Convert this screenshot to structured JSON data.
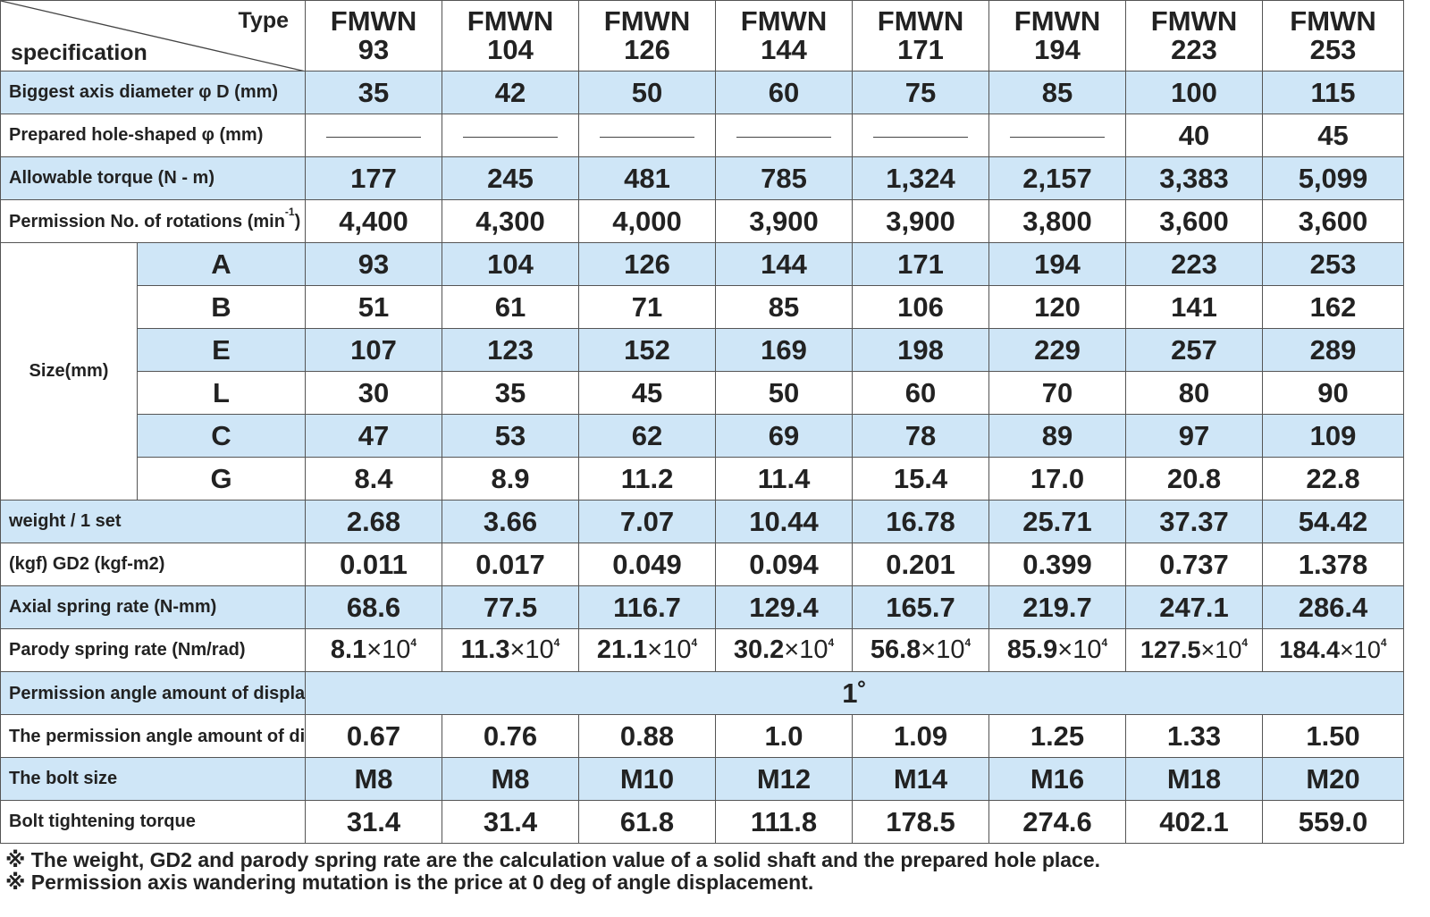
{
  "header": {
    "type_label": "Type",
    "spec_label": "specification",
    "models": [
      {
        "series": "FMWN",
        "num": "93"
      },
      {
        "series": "FMWN",
        "num": "104"
      },
      {
        "series": "FMWN",
        "num": "126"
      },
      {
        "series": "FMWN",
        "num": "144"
      },
      {
        "series": "FMWN",
        "num": "171"
      },
      {
        "series": "FMWN",
        "num": "194"
      },
      {
        "series": "FMWN",
        "num": "223"
      },
      {
        "series": "FMWN",
        "num": "253"
      }
    ]
  },
  "rows": {
    "biggest_axis": {
      "label": "Biggest axis diameter φ D (mm)",
      "values": [
        "35",
        "42",
        "50",
        "60",
        "75",
        "85",
        "100",
        "115"
      ]
    },
    "prepared_hole": {
      "label": "Prepared hole-shaped φ (mm)",
      "values": [
        "",
        "",
        "",
        "",
        "",
        "",
        "40",
        "45"
      ]
    },
    "torque": {
      "label": "Allowable torque (N - m)",
      "values": [
        "177",
        "245",
        "481",
        "785",
        "1,324",
        "2,157",
        "3,383",
        "5,099"
      ]
    },
    "rotations": {
      "label": "Permission No. of rotations (min",
      "label_sup": "-1",
      "label_end": ")",
      "values": [
        "4,400",
        "4,300",
        "4,000",
        "3,900",
        "3,900",
        "3,800",
        "3,600",
        "3,600"
      ]
    },
    "size": {
      "label": "Size(mm)",
      "sub": [
        {
          "key": "A",
          "values": [
            "93",
            "104",
            "126",
            "144",
            "171",
            "194",
            "223",
            "253"
          ]
        },
        {
          "key": "B",
          "values": [
            "51",
            "61",
            "71",
            "85",
            "106",
            "120",
            "141",
            "162"
          ]
        },
        {
          "key": "E",
          "values": [
            "107",
            "123",
            "152",
            "169",
            "198",
            "229",
            "257",
            "289"
          ]
        },
        {
          "key": "L",
          "values": [
            "30",
            "35",
            "45",
            "50",
            "60",
            "70",
            "80",
            "90"
          ]
        },
        {
          "key": "C",
          "values": [
            "47",
            "53",
            "62",
            "69",
            "78",
            "89",
            "97",
            "109"
          ]
        },
        {
          "key": "G",
          "values": [
            "8.4",
            "8.9",
            "11.2",
            "11.4",
            "15.4",
            "17.0",
            "20.8",
            "22.8"
          ]
        }
      ]
    },
    "weight": {
      "label": "weight / 1 set",
      "values": [
        "2.68",
        "3.66",
        "7.07",
        "10.44",
        "16.78",
        "25.71",
        "37.37",
        "54.42"
      ]
    },
    "gd2": {
      "label": " (kgf) GD2 (kgf-m2)",
      "values": [
        "0.011",
        "0.017",
        "0.049",
        "0.094",
        "0.201",
        "0.399",
        "0.737",
        "1.378"
      ]
    },
    "axial": {
      "label": "Axial spring rate (N-mm)",
      "values": [
        "68.6",
        "77.5",
        "116.7",
        "129.4",
        "165.7",
        "219.7",
        "247.1",
        "286.4"
      ]
    },
    "parody": {
      "label": "Parody spring rate (Nm/rad)",
      "times": "×10",
      "exp": "4",
      "values": [
        "8.1",
        "11.3",
        "21.1",
        "30.2",
        "56.8",
        "85.9",
        "127.5",
        "184.4"
      ]
    },
    "angle_deg": {
      "label": "Permission angle amount of displacement (the deg)",
      "value": "1˚"
    },
    "angle_mm": {
      "label": "The permission angle amount of displacement (mm)",
      "values": [
        "0.67",
        "0.76",
        "0.88",
        "1.0",
        "1.09",
        "1.25",
        "1.33",
        "1.50"
      ]
    },
    "bolt": {
      "label": "The bolt size",
      "values": [
        "M8",
        "M8",
        "M10",
        "M12",
        "M14",
        "M16",
        "M18",
        "M20"
      ]
    },
    "bolt_torque": {
      "label": "Bolt tightening torque",
      "values": [
        "31.4",
        "31.4",
        "61.8",
        "111.8",
        "178.5",
        "274.6",
        "402.1",
        "559.0"
      ]
    }
  },
  "notes": [
    "※ The weight, GD2 and parody spring rate are the calculation value of a solid shaft and the prepared hole place.",
    "※ Permission axis wandering mutation is the price at 0 deg of angle displacement."
  ],
  "colors": {
    "row_highlight": "#cfe6f7",
    "border": "#555555"
  }
}
